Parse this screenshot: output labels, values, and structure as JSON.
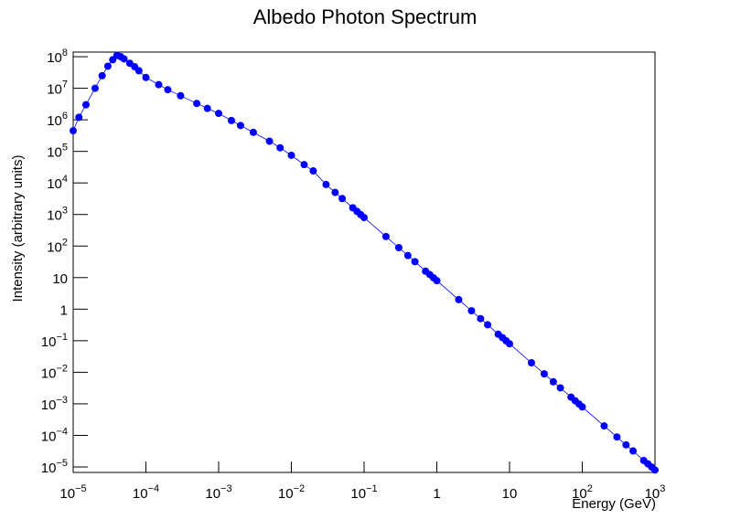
{
  "chart_data": {
    "type": "scatter-line",
    "title": "Albedo Photon Spectrum",
    "x_label": "Energy (GeV)",
    "y_label": "Intensity (arbitrary units)",
    "log_x": true,
    "log_y": true,
    "xlim": [
      1e-05,
      1000
    ],
    "ylim": [
      6.7e-06,
      140000000
    ],
    "xticks": [
      {
        "value": 1e-05,
        "label": "10",
        "exponent": "−5"
      },
      {
        "value": 0.0001,
        "label": "10",
        "exponent": "−4"
      },
      {
        "value": 0.001,
        "label": "10",
        "exponent": "−3"
      },
      {
        "value": 0.01,
        "label": "10",
        "exponent": "−2"
      },
      {
        "value": 0.1,
        "label": "10",
        "exponent": "−1"
      },
      1,
      10,
      {
        "value": 100,
        "label": "10",
        "exponent": "2"
      },
      {
        "value": 1000,
        "label": "10",
        "exponent": "3"
      }
    ],
    "yticks": [
      {
        "value": 1e-05,
        "label": "10",
        "exponent": "−5"
      },
      {
        "value": 0.0001,
        "label": "10",
        "exponent": "−4"
      },
      {
        "value": 0.001,
        "label": "10",
        "exponent": "−3"
      },
      {
        "value": 0.01,
        "label": "10",
        "exponent": "−2"
      },
      {
        "value": 0.1,
        "label": "10",
        "exponent": "−1"
      },
      1,
      10,
      {
        "value": 100,
        "label": "10",
        "exponent": "2"
      },
      {
        "value": 1000,
        "label": "10",
        "exponent": "3"
      },
      {
        "value": 10000,
        "label": "10",
        "exponent": "4"
      },
      {
        "value": 100000,
        "label": "10",
        "exponent": "5"
      },
      {
        "value": 1000000,
        "label": "10",
        "exponent": "6"
      },
      {
        "value": 10000000,
        "label": "10",
        "exponent": "7"
      },
      {
        "value": 100000000,
        "label": "10",
        "exponent": "8"
      }
    ],
    "color": "#0000ff",
    "x": [
      1e-05,
      1.2e-05,
      1.5e-05,
      2e-05,
      2.5e-05,
      3e-05,
      3.5e-05,
      4e-05,
      4.5e-05,
      5e-05,
      6e-05,
      7e-05,
      8e-05,
      0.0001,
      0.00015,
      0.0002,
      0.0003,
      0.0005,
      0.0007,
      0.001,
      0.0015,
      0.002,
      0.003,
      0.005,
      0.007,
      0.01,
      0.015,
      0.02,
      0.03,
      0.04,
      0.05,
      0.07,
      0.08,
      0.09,
      0.1,
      0.2,
      0.3,
      0.4,
      0.5,
      0.7,
      0.8,
      0.9,
      1,
      2,
      3,
      4,
      5,
      7,
      8,
      9,
      10,
      20,
      30,
      40,
      50,
      70,
      80,
      90,
      100,
      200,
      300,
      400,
      500,
      700,
      800,
      900,
      1000
    ],
    "values": [
      450000,
      1200000,
      3000000,
      10000000,
      25000000,
      50000000,
      80000000,
      110000000,
      100000000,
      85000000,
      62000000,
      48000000,
      36000000,
      22000000,
      13000000,
      9000000,
      5800000,
      3300000,
      2300000,
      1600000,
      950000,
      660000,
      400000,
      210000,
      130000,
      75000,
      38000,
      24000,
      8900,
      5000,
      3200,
      1630,
      1250,
      988,
      800,
      200,
      89,
      50,
      32,
      16,
      12.5,
      9.9,
      8,
      2,
      0.89,
      0.5,
      0.32,
      0.16,
      0.125,
      0.099,
      0.08,
      0.02,
      0.0089,
      0.005,
      0.0032,
      0.00163,
      0.00125,
      0.00099,
      0.0008,
      0.0002,
      8.9e-05,
      5e-05,
      3.2e-05,
      1.6e-05,
      1.25e-05,
      9.9e-06,
      8e-06
    ]
  }
}
